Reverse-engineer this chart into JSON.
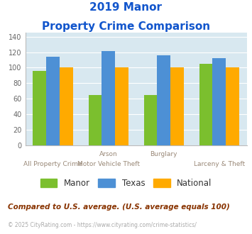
{
  "title_line1": "2019 Manor",
  "title_line2": "Property Crime Comparison",
  "groups": [
    {
      "manor": 96,
      "texas": 114,
      "national": 100
    },
    {
      "manor": 65,
      "texas": 121,
      "national": 100
    },
    {
      "manor": 65,
      "texas": 116,
      "national": 100
    },
    {
      "manor": 105,
      "texas": 112,
      "national": 100
    }
  ],
  "top_xlabels": [
    "",
    "Arson",
    "Burglary",
    ""
  ],
  "bottom_xlabels": [
    "All Property Crime",
    "Motor Vehicle Theft",
    "",
    "Larceny & Theft"
  ],
  "manor_color": "#7bbf2e",
  "texas_color": "#4d90d5",
  "national_color": "#ffaa00",
  "bg_color": "#d8e8f0",
  "title_color": "#1155cc",
  "xlabel_color": "#998877",
  "legend_labels": [
    "Manor",
    "Texas",
    "National"
  ],
  "footer_text": "Compared to U.S. average. (U.S. average equals 100)",
  "copyright_text": "© 2025 CityRating.com - https://www.cityrating.com/crime-statistics/",
  "footer_color": "#883300",
  "copyright_color": "#aaaaaa",
  "ylim": [
    0,
    145
  ],
  "yticks": [
    0,
    20,
    40,
    60,
    80,
    100,
    120,
    140
  ],
  "bar_width": 0.24,
  "figsize": [
    3.55,
    3.3
  ],
  "dpi": 100
}
